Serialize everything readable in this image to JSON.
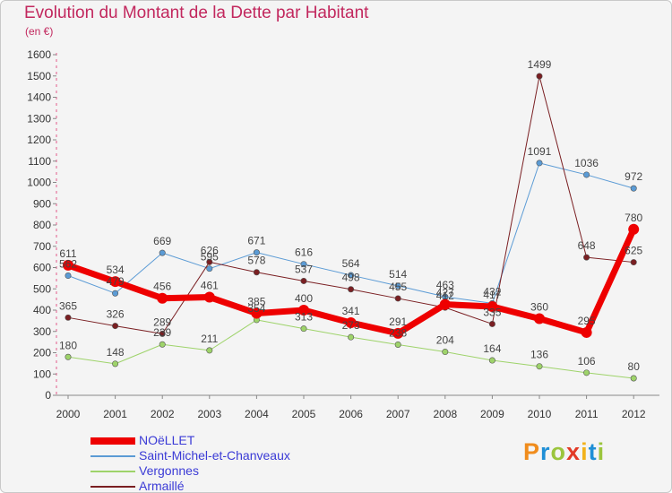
{
  "title": "Evolution du Montant de la Dette par Habitant",
  "subtitle": "(en €)",
  "logo": {
    "letters": [
      "P",
      "r",
      "o",
      "x",
      "i",
      "t",
      "i"
    ],
    "colors": [
      "#f08c1c",
      "#1f8fd6",
      "#9bc53d",
      "#e23a26",
      "#f2b21b",
      "#1f8fd6",
      "#9bc53d"
    ]
  },
  "chart_data": {
    "type": "line",
    "x": [
      "2000",
      "2001",
      "2002",
      "2003",
      "2004",
      "2005",
      "2006",
      "2007",
      "2008",
      "2009",
      "2010",
      "2011",
      "2012"
    ],
    "yticks": [
      0,
      100,
      200,
      300,
      400,
      500,
      600,
      700,
      800,
      900,
      1000,
      1100,
      1200,
      1300,
      1400,
      1500,
      1600
    ],
    "ylim": [
      0,
      1600
    ],
    "grid": false,
    "legend_position": "bottom-left",
    "series": [
      {
        "name": "Saint-Michel-et-Chanveaux",
        "color": "#5b9bd5",
        "width": 1,
        "values": [
          562,
          479,
          669,
          595,
          671,
          616,
          564,
          514,
          463,
          432,
          1091,
          1036,
          972
        ],
        "labels": [
          "562",
          "479",
          "669",
          "595",
          "671",
          "616",
          "564",
          "514",
          "463",
          "432",
          "1091",
          "1036",
          "972"
        ]
      },
      {
        "name": "Vergonnes",
        "color": "#9ed36a",
        "width": 1,
        "values": [
          180,
          148,
          239,
          211,
          354,
          313,
          273,
          238,
          204,
          164,
          136,
          106,
          80
        ],
        "labels": [
          "180",
          "148",
          "239",
          "211",
          "354",
          "313",
          "273",
          "238",
          "204",
          "164",
          "136",
          "106",
          "80"
        ]
      },
      {
        "name": "Armaillé",
        "color": "#7a1f22",
        "width": 1,
        "values": [
          365,
          326,
          289,
          626,
          578,
          537,
          498,
          455,
          412,
          335,
          1499,
          648,
          625
        ],
        "labels": [
          "365",
          "326",
          "289",
          "626",
          "578",
          "537",
          "498",
          "455",
          "412",
          "335",
          "1499",
          "648",
          "625"
        ]
      },
      {
        "name": "NOëLLET",
        "color": "#ee0000",
        "width": 7,
        "values": [
          611,
          534,
          456,
          461,
          385,
          400,
          341,
          291,
          427,
          417,
          360,
          295,
          780
        ],
        "labels": [
          "611",
          "534",
          "456",
          "461",
          "385",
          "400",
          "341",
          "291",
          "427",
          "417",
          "360",
          "295",
          "780"
        ]
      }
    ]
  }
}
